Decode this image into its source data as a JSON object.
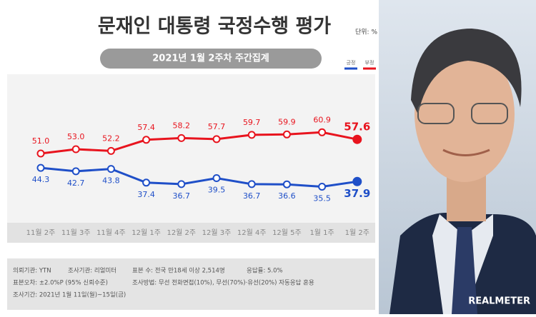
{
  "chart_data": {
    "type": "line",
    "title": "문재인 대통령 국정수행 평가",
    "unit": "단위: %",
    "subtitle": "2021년 1월 2주차 주간집계",
    "categories": [
      "11월 2주",
      "11월 3주",
      "11월 4주",
      "12월 1주",
      "12월 2주",
      "12월 3주",
      "12월 4주",
      "12월 5주",
      "1월 1주",
      "1월 2주"
    ],
    "series": [
      {
        "name": "부정",
        "color": "#e8141e",
        "values": [
          51.0,
          53.0,
          52.2,
          57.4,
          58.2,
          57.7,
          59.7,
          59.9,
          60.9,
          57.6
        ],
        "value_labels": [
          "51.0",
          "53.0",
          "52.2",
          "57.4",
          "58.2",
          "57.7",
          "59.7",
          "59.9",
          "60.9",
          "57.6"
        ]
      },
      {
        "name": "긍정",
        "color": "#1f4fc8",
        "values": [
          44.3,
          42.7,
          43.8,
          37.4,
          36.7,
          39.5,
          36.7,
          36.6,
          35.5,
          37.9
        ],
        "value_labels": [
          "44.3",
          "42.7",
          "43.8",
          "37.4",
          "36.7",
          "39.5",
          "36.7",
          "36.6",
          "35.5",
          "37.9"
        ]
      }
    ],
    "legend_order": [
      1,
      0
    ],
    "ylim": [
      20,
      80
    ],
    "notes": [
      "의뢰기관: YTN",
      "조사기관: 리얼미터",
      "표본 수: 전국 만18세 이상 2,514명",
      "응답률: 5.0%",
      "표본오차: ±2.0%P (95% 신뢰수준)",
      "조사방법: 무선 전화면접(10%), 무선(70%)·유선(20%) 자동응답 혼용",
      "조사기간: 2021년 1월 11일(월)~15일(금)"
    ],
    "brand": "REALMETER"
  }
}
